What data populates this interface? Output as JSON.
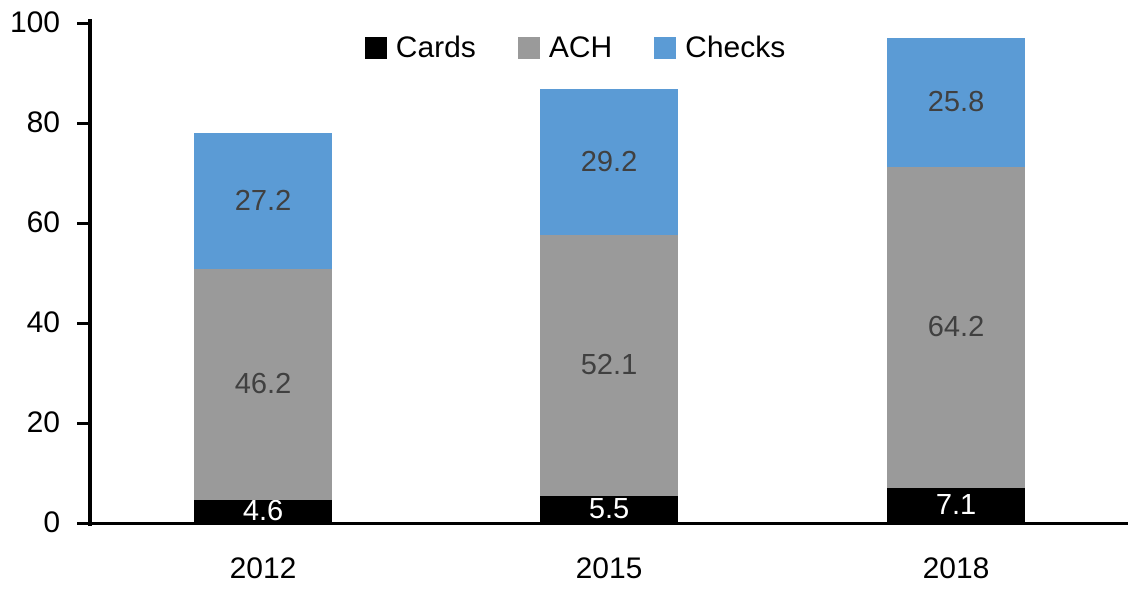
{
  "chart_data": {
    "type": "bar",
    "stacked": true,
    "title": "",
    "categories": [
      "2012",
      "2015",
      "2018"
    ],
    "series": [
      {
        "name": "Cards",
        "color": "#000000",
        "label_color": "#ffffff",
        "values": [
          4.6,
          5.5,
          7.1
        ]
      },
      {
        "name": "ACH",
        "color": "#9a9a9a",
        "label_color": "#404040",
        "values": [
          46.2,
          52.1,
          64.2
        ]
      },
      {
        "name": "Checks",
        "color": "#5b9bd5",
        "label_color": "#404040",
        "values": [
          27.2,
          29.2,
          25.8
        ]
      }
    ],
    "totals": [
      78.0,
      86.8,
      97.1
    ],
    "xlabel": "",
    "ylabel": "",
    "ylim": [
      0,
      100
    ],
    "yticks": [
      0,
      20,
      40,
      60,
      80,
      100
    ],
    "grid": false,
    "legend_position": "top-center",
    "axis_color": "#000000",
    "background_color": "#ffffff"
  }
}
